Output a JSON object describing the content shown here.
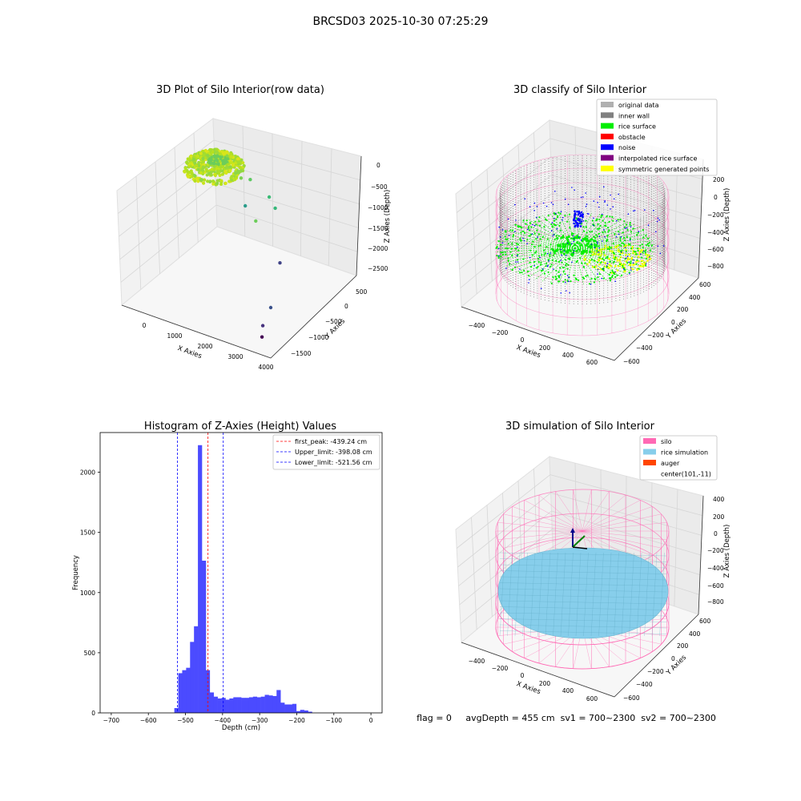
{
  "figure": {
    "suptitle": "BRCSD03 2025-10-30 07:25:29",
    "status_line": "flag = 0     avgDepth = 455 cm  sv1 = 700~2300  sv2 = 700~2300"
  },
  "chart_data": [
    {
      "type": "scatter",
      "projection": "3d",
      "title": "3D Plot of Silo Interior(row data)",
      "xlabel": "X Axies",
      "ylabel": "Y Axies",
      "zlabel": "Z Axies (Depth)",
      "xticks": [
        "0",
        "1000",
        "2000",
        "3000",
        "4000"
      ],
      "yticks": [
        "500",
        "0",
        "−500",
        "−1000",
        "−1500"
      ],
      "zticks": [
        "0",
        "−500",
        "−1000",
        "−1500",
        "−2000",
        "−2500"
      ],
      "grid": true,
      "colormap": "viridis",
      "cluster": {
        "x_range": [
          -500,
          900
        ],
        "y_range": [
          -500,
          500
        ],
        "z_approx": -450,
        "color": "#b5e01f"
      },
      "outliers": [
        {
          "x": 900,
          "y": 400,
          "z": -1050
        },
        {
          "x": 1300,
          "y": 300,
          "z": -900
        },
        {
          "x": 1900,
          "y": 300,
          "z": -1150
        },
        {
          "x": 2200,
          "y": 200,
          "z": -1250
        },
        {
          "x": 1200,
          "y": 250,
          "z": -1500
        },
        {
          "x": 1700,
          "y": 100,
          "z": -1600
        },
        {
          "x": 2800,
          "y": -200,
          "z": -2050
        },
        {
          "x": 3300,
          "y": -900,
          "z": -2400
        },
        {
          "x": 3500,
          "y": -1300,
          "z": -2450
        },
        {
          "x": 3700,
          "y": -1500,
          "z": -2500
        }
      ]
    },
    {
      "type": "scatter",
      "projection": "3d",
      "title": "3D classify of Silo Interior",
      "xlabel": "X Axies",
      "ylabel": "Y Axies",
      "zlabel": "Z Axies (Depth)",
      "xticks": [
        "−400",
        "−200",
        "0",
        "200",
        "400",
        "600"
      ],
      "yticks": [
        "600",
        "400",
        "200",
        "0",
        "−200",
        "−400",
        "−600"
      ],
      "zticks": [
        "200",
        "0",
        "−200",
        "−400",
        "−600",
        "−800"
      ],
      "grid": true,
      "legend_position": "top-right",
      "legend": [
        {
          "label": "original data",
          "color": "#b0b0b0"
        },
        {
          "label": "inner wall",
          "color": "#808080"
        },
        {
          "label": "rice surface",
          "color": "#00ee00"
        },
        {
          "label": "obstacle",
          "color": "#ff0000"
        },
        {
          "label": "noise",
          "color": "#0000ff"
        },
        {
          "label": "interpolated rice surface",
          "color": "#800080"
        },
        {
          "label": "symmetric generated points",
          "color": "#ffff00"
        }
      ],
      "wireframe_color": "#ff69b4"
    },
    {
      "type": "bar",
      "title": "Histogram of Z-Axies (Height) Values",
      "xlabel": "Depth (cm)",
      "ylabel": "Frequency",
      "xlim": [
        -730,
        30
      ],
      "ylim": [
        0,
        2330
      ],
      "xticks": [
        -700,
        -600,
        -500,
        -400,
        -300,
        -200,
        -100,
        0
      ],
      "yticks": [
        0,
        500,
        1000,
        1500,
        2000
      ],
      "grid": false,
      "bar_color": "#4b4bff",
      "bin_width": 10.6,
      "bins": [
        {
          "x": -530,
          "v": 40
        },
        {
          "x": -519.4,
          "v": 330
        },
        {
          "x": -508.8,
          "v": 355
        },
        {
          "x": -498.2,
          "v": 375
        },
        {
          "x": -487.6,
          "v": 590
        },
        {
          "x": -477,
          "v": 720
        },
        {
          "x": -466.4,
          "v": 2225
        },
        {
          "x": -455.8,
          "v": 1265
        },
        {
          "x": -445.2,
          "v": 355
        },
        {
          "x": -434.6,
          "v": 170
        },
        {
          "x": -424,
          "v": 135
        },
        {
          "x": -413.4,
          "v": 120
        },
        {
          "x": -402.8,
          "v": 125
        },
        {
          "x": -392.2,
          "v": 110
        },
        {
          "x": -381.6,
          "v": 120
        },
        {
          "x": -371,
          "v": 130
        },
        {
          "x": -360.4,
          "v": 130
        },
        {
          "x": -349.8,
          "v": 125
        },
        {
          "x": -339.2,
          "v": 125
        },
        {
          "x": -328.6,
          "v": 130
        },
        {
          "x": -318,
          "v": 135
        },
        {
          "x": -307.4,
          "v": 130
        },
        {
          "x": -296.8,
          "v": 135
        },
        {
          "x": -286.2,
          "v": 150
        },
        {
          "x": -275.6,
          "v": 145
        },
        {
          "x": -265,
          "v": 140
        },
        {
          "x": -254.4,
          "v": 190
        },
        {
          "x": -243.8,
          "v": 85
        },
        {
          "x": -233.2,
          "v": 70
        },
        {
          "x": -222.6,
          "v": 70
        },
        {
          "x": -212,
          "v": 75
        },
        {
          "x": -201.4,
          "v": 15
        },
        {
          "x": -190.8,
          "v": 25
        },
        {
          "x": -180.2,
          "v": 20
        },
        {
          "x": -169.6,
          "v": 10
        }
      ],
      "vlines": [
        {
          "x": -439.24,
          "color": "#ff0000",
          "label": "first_peak: -439.24 cm"
        },
        {
          "x": -398.08,
          "color": "#0000ff",
          "label": "Upper_limit: -398.08 cm"
        },
        {
          "x": -521.56,
          "color": "#0000ff",
          "label": "Lower_limit: -521.56 cm"
        }
      ],
      "legend_position": "top-right"
    },
    {
      "type": "surface",
      "projection": "3d",
      "title": "3D simulation of Silo Interior",
      "xlabel": "X Axies",
      "ylabel": "Y Axies",
      "zlabel": "Z Axies (Depth)",
      "xticks": [
        "−400",
        "−200",
        "0",
        "200",
        "400",
        "600"
      ],
      "yticks": [
        "600",
        "400",
        "200",
        "0",
        "−200",
        "−400",
        "−600"
      ],
      "zticks": [
        "400",
        "200",
        "0",
        "−200",
        "−400",
        "−600",
        "−800"
      ],
      "grid": true,
      "legend_position": "top-right",
      "legend": [
        {
          "label": "silo",
          "color": "#ff69b4",
          "swatch": true
        },
        {
          "label": "rice simulation",
          "color": "#87ceeb",
          "swatch": true
        },
        {
          "label": "auger",
          "color": "#ff4500",
          "swatch": true
        },
        {
          "label": "center(101,-11)",
          "color": "#ffffff",
          "swatch": false
        }
      ],
      "center": {
        "x": 101,
        "y": -11
      }
    }
  ]
}
